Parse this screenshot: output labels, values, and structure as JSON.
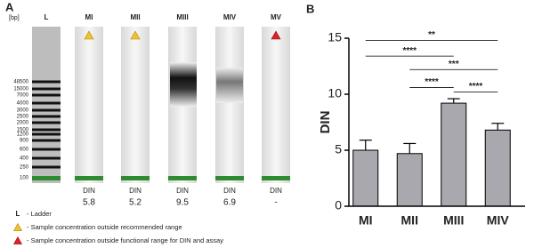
{
  "panel_a": {
    "label": "A",
    "unit": "[bp]",
    "ladder_sizes": [
      "48500",
      "15000",
      "7000",
      "4000",
      "3000",
      "2500",
      "2000",
      "1500",
      "1200",
      "900",
      "600",
      "400",
      "250",
      "100"
    ],
    "lanes": [
      {
        "name": "L"
      },
      {
        "name": "MI",
        "flag": "warning",
        "din_label": "DIN",
        "din": "5.8"
      },
      {
        "name": "MII",
        "flag": "warning",
        "din_label": "DIN",
        "din": "5.2"
      },
      {
        "name": "MIII",
        "din_label": "DIN",
        "din": "9.5"
      },
      {
        "name": "MIV",
        "din_label": "DIN",
        "din": "6.9"
      },
      {
        "name": "MV",
        "flag": "error",
        "din_label": "DIN",
        "din": "-"
      }
    ],
    "legend": [
      {
        "symbol": "L",
        "text": "- Ladder"
      },
      {
        "icon": "warning",
        "text": "- Sample concentration outside recommended range"
      },
      {
        "icon": "error",
        "text": "- Sample concentration outside functional range for DIN and assay"
      }
    ]
  },
  "chart_data": {
    "type": "bar",
    "panel_label": "B",
    "y_label": "DIN",
    "categories": [
      "MI",
      "MII",
      "MIII",
      "MIV"
    ],
    "values": [
      5.0,
      4.7,
      9.2,
      6.8
    ],
    "errors": [
      0.9,
      0.9,
      0.4,
      0.6
    ],
    "color": "#a9a8ae",
    "ylim": [
      0,
      15
    ],
    "yticks": [
      0,
      5,
      10,
      15
    ],
    "significance": [
      {
        "from": 0,
        "to": 3,
        "label": "**",
        "y": 14.8
      },
      {
        "from": 0,
        "to": 2,
        "label": "****",
        "y": 13.4
      },
      {
        "from": 1,
        "to": 3,
        "label": "***",
        "y": 12.2
      },
      {
        "from": 1,
        "to": 2,
        "label": "****",
        "y": 10.6
      },
      {
        "from": 2,
        "to": 3,
        "label": "****",
        "y": 10.2
      }
    ]
  }
}
